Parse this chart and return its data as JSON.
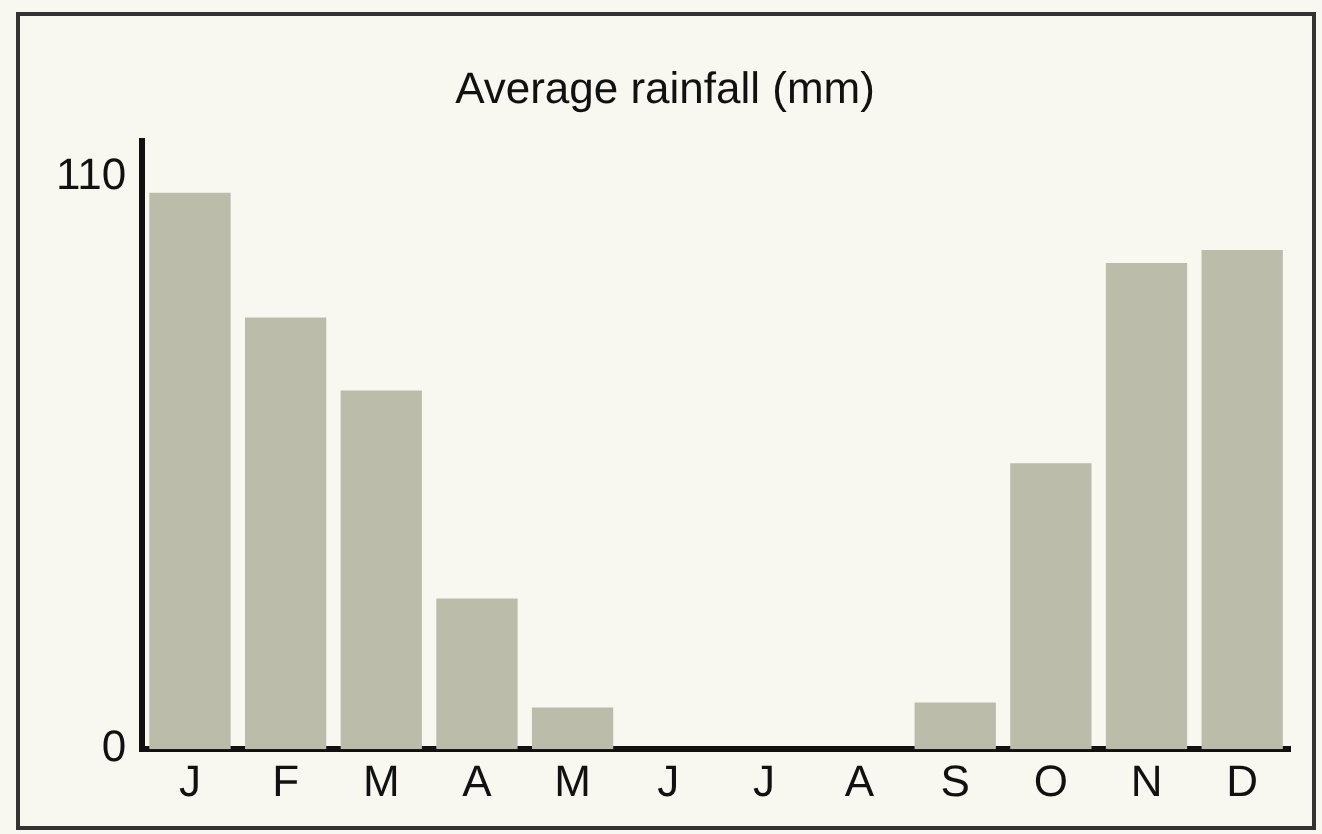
{
  "chart_data": {
    "type": "bar",
    "title": "Average rainfall (mm)",
    "categories": [
      "J",
      "F",
      "M",
      "A",
      "M",
      "J",
      "J",
      "A",
      "S",
      "O",
      "N",
      "D"
    ],
    "values": [
      107,
      83,
      69,
      29,
      8,
      0,
      0,
      0,
      9,
      55,
      93.5,
      96
    ],
    "color": "#bbbcaa",
    "ylim": [
      0,
      117
    ],
    "yticks": [
      0,
      110
    ],
    "grid": false,
    "legend": false
  }
}
